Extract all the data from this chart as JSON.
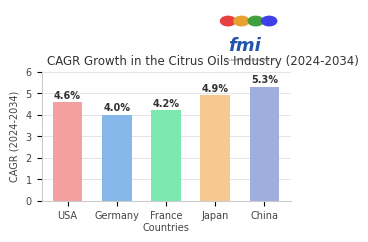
{
  "title": "CAGR Growth in the Citrus Oils Industry (2024-2034)",
  "categories": [
    "USA",
    "Germany",
    "France\nCountries",
    "Japan",
    "China"
  ],
  "xlabel": "",
  "ylabel": "CAGR (2024-2034)",
  "values": [
    4.6,
    4.0,
    4.2,
    4.9,
    5.3
  ],
  "labels": [
    "4.6%",
    "4.0%",
    "4.2%",
    "4.9%",
    "5.3%"
  ],
  "bar_colors": [
    "#f4a0a0",
    "#85b8e8",
    "#7de8b0",
    "#f5c990",
    "#a0aedd"
  ],
  "ylim": [
    0,
    6
  ],
  "yticks": [
    0,
    1,
    2,
    3,
    4,
    5,
    6
  ],
  "background_color": "#ffffff",
  "grid_color": "#e0e0e0",
  "title_fontsize": 8.5,
  "label_fontsize": 7,
  "tick_fontsize": 7
}
